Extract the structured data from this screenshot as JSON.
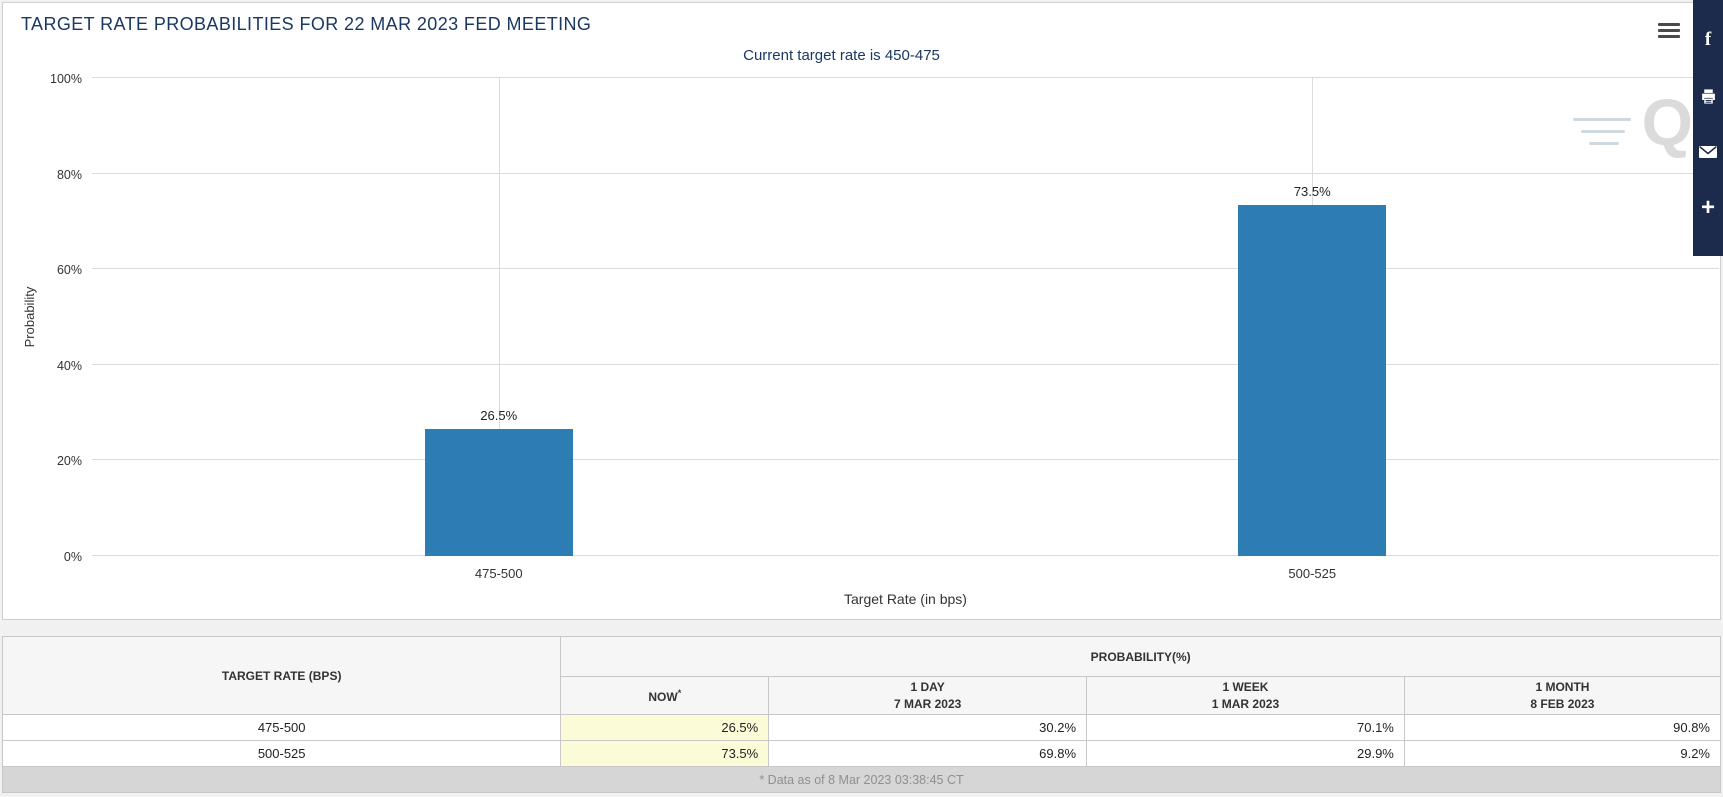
{
  "chart": {
    "title": "TARGET RATE PROBABILITIES FOR 22 MAR 2023 FED MEETING",
    "subtitle": "Current target rate is 450-475"
  },
  "chart_data": {
    "type": "bar",
    "title": "TARGET RATE PROBABILITIES FOR 22 MAR 2023 FED MEETING",
    "subtitle": "Current target rate is 450-475",
    "categories": [
      "475-500",
      "500-525"
    ],
    "values": [
      26.5,
      73.5
    ],
    "value_labels": [
      "26.5%",
      "73.5%"
    ],
    "xlabel": "Target Rate (in bps)",
    "ylabel": "Probability",
    "ylim": [
      0,
      100
    ],
    "ytick_labels": [
      "0%",
      "20%",
      "40%",
      "60%",
      "80%",
      "100%"
    ],
    "grid": true,
    "legend": false,
    "bar_color": "#2E7CB4"
  },
  "colors": {
    "title_navy": "#1A3864",
    "bar_blue": "#2E7CB4",
    "share_bar_navy": "#1C2B4B",
    "now_highlight": "#FBFBD8",
    "footer_gray": "#D6D6D6"
  },
  "branding": {
    "watermark_text": "Q"
  },
  "share_bar": {
    "facebook_glyph": "f",
    "plus_glyph": "+",
    "icons": [
      "facebook-icon",
      "print-icon",
      "email-icon",
      "plus-icon"
    ]
  },
  "table": {
    "header_target": "TARGET RATE (BPS)",
    "header_probability": "PROBABILITY(%)",
    "columns": [
      {
        "line1": "NOW",
        "footnote": "*",
        "line2": ""
      },
      {
        "line1": "1 DAY",
        "line2": "7 MAR 2023"
      },
      {
        "line1": "1 WEEK",
        "line2": "1 MAR 2023"
      },
      {
        "line1": "1 MONTH",
        "line2": "8 FEB 2023"
      }
    ],
    "rows": [
      {
        "rate": "475-500",
        "now": "26.5%",
        "day1": "30.2%",
        "week1": "70.1%",
        "month1": "90.8%"
      },
      {
        "rate": "500-525",
        "now": "73.5%",
        "day1": "69.8%",
        "week1": "29.9%",
        "month1": "9.2%"
      }
    ],
    "footnote": "* Data as of 8 Mar 2023 03:38:45 CT"
  }
}
